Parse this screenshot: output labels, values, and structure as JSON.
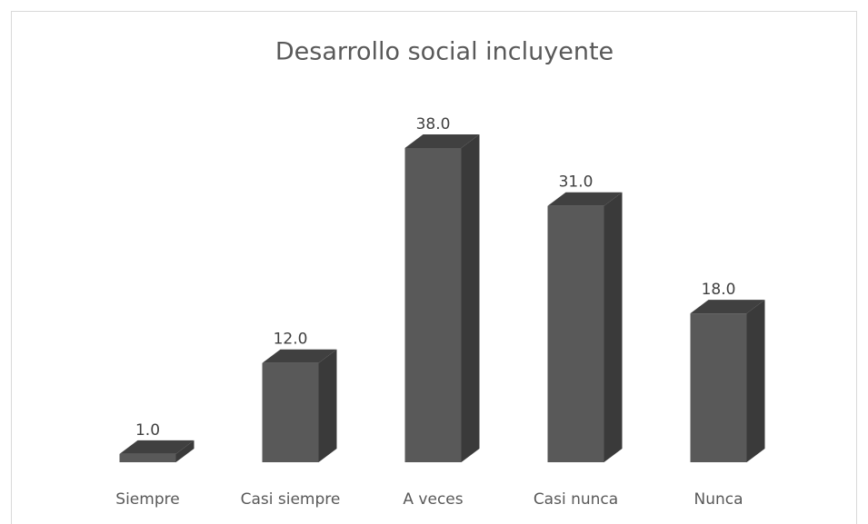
{
  "chart_data": {
    "type": "bar3d",
    "title": "Desarrollo social incluyente",
    "categories": [
      "Siempre",
      "Casi siempre",
      "A veces",
      "Casi nunca",
      "Nunca"
    ],
    "values": [
      1,
      12,
      38,
      31,
      18
    ],
    "value_labels": [
      "1.0",
      "12.0",
      "38.0",
      "31.0",
      "18.0"
    ],
    "color": "#595959"
  }
}
